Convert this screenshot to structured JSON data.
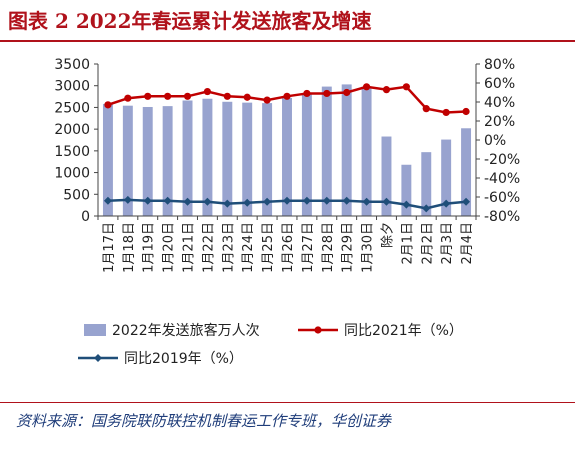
{
  "figure_title": "图表 2   2022年春运累计发送旅客及增速",
  "source_text": "资料来源：国务院联防联控机制春运工作专班，华创证券",
  "colors": {
    "title": "#b0121b",
    "bar": "#98a3cf",
    "line2021": "#c00000",
    "line2019": "#1f4e79",
    "source": "#1f3d7a"
  },
  "chart_data": {
    "type": "bar+line",
    "categories": [
      "1月17日",
      "1月18日",
      "1月19日",
      "1月20日",
      "1月21日",
      "1月22日",
      "1月23日",
      "1月24日",
      "1月25日",
      "1月26日",
      "1月27日",
      "1月28日",
      "1月29日",
      "1月30日",
      "除夕",
      "2月1日",
      "2月2日",
      "2月3日",
      "2月4日"
    ],
    "series": [
      {
        "name": "2022年发送旅客万人次",
        "kind": "bar",
        "axis": "left",
        "values": [
          2580,
          2540,
          2510,
          2530,
          2660,
          2700,
          2630,
          2610,
          2600,
          2720,
          2800,
          2980,
          3030,
          2980,
          1830,
          1180,
          1470,
          1760,
          2020
        ]
      },
      {
        "name": "同比2021年（%）",
        "kind": "line",
        "axis": "right",
        "values": [
          37,
          44,
          46,
          46,
          46,
          51,
          46,
          45,
          42,
          46,
          49,
          49,
          50,
          56,
          53,
          56,
          33,
          29,
          30
        ]
      },
      {
        "name": "同比2019年（%）",
        "kind": "line",
        "axis": "right",
        "values": [
          -64,
          -63,
          -64,
          -64,
          -65,
          -65,
          -67,
          -66,
          -65,
          -64,
          -64,
          -64,
          -64,
          -65,
          -65,
          -68,
          -72,
          -67,
          -65
        ]
      }
    ],
    "y_left": {
      "range": [
        0,
        3500
      ],
      "ticks": [
        "0",
        "500",
        "1000",
        "1500",
        "2000",
        "2500",
        "3000",
        "3500"
      ]
    },
    "y_right": {
      "range": [
        -80,
        80
      ],
      "ticks": [
        "-80%",
        "-60%",
        "-40%",
        "-20%",
        "0%",
        "20%",
        "40%",
        "60%",
        "80%"
      ]
    },
    "grid": false,
    "legend_position": "bottom"
  }
}
